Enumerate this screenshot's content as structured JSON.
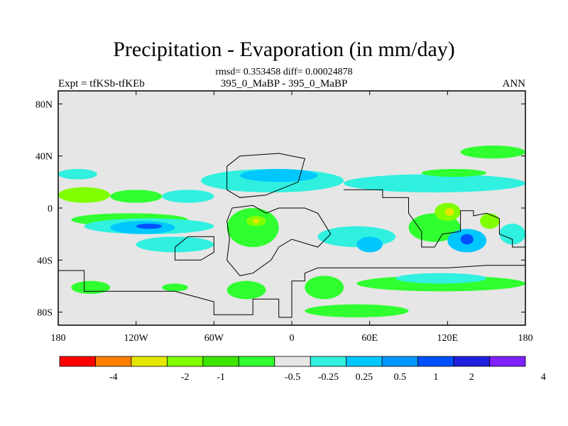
{
  "chart_data": {
    "type": "heatmap",
    "title": "Precipitation - Evaporation (in mm/day)",
    "stats": "rmsd= 0.353458 diff= 0.00024878",
    "subtitle": "395_0_MaBP - 395_0_MaBP",
    "expt": "Expt = tfKSb-tfKEb",
    "season": "ANN",
    "x_ticks": [
      {
        "value": -180,
        "label": "180"
      },
      {
        "value": -120,
        "label": "120W"
      },
      {
        "value": -60,
        "label": "60W"
      },
      {
        "value": 0,
        "label": "0"
      },
      {
        "value": 60,
        "label": "60E"
      },
      {
        "value": 120,
        "label": "120E"
      },
      {
        "value": 180,
        "label": "180"
      }
    ],
    "y_ticks": [
      {
        "value": 80,
        "label": "80N"
      },
      {
        "value": 40,
        "label": "40N"
      },
      {
        "value": 0,
        "label": "0"
      },
      {
        "value": -40,
        "label": "40S"
      },
      {
        "value": -80,
        "label": "80S"
      }
    ],
    "xlim": [
      -180,
      180
    ],
    "ylim": [
      -90,
      90
    ],
    "colorbar": {
      "colors": [
        "#ff0000",
        "#ff7f00",
        "#e6e600",
        "#80ff00",
        "#3ce600",
        "#30ff30",
        "#e6e6e6",
        "#30f0e0",
        "#00c8ff",
        "#0098ff",
        "#0050ff",
        "#2020e0",
        "#8020ff"
      ],
      "levels": [
        "-4",
        "-2",
        "-1",
        "-0.5",
        "-0.25",
        "0.25",
        "0.5",
        "1",
        "2",
        "4"
      ],
      "level_positions": [
        1.5,
        3.5,
        4.5,
        6.5,
        7.5,
        8.5,
        9.5,
        10.5,
        11.5,
        13.5
      ]
    },
    "regions": [
      {
        "level": "lightgreen",
        "color": "#80ff00",
        "lon": [
          -180,
          -140
        ],
        "lat": [
          4,
          16
        ]
      },
      {
        "level": "green",
        "color": "#30ff30",
        "lon": [
          -140,
          -100
        ],
        "lat": [
          4,
          14
        ]
      },
      {
        "level": "cyan",
        "color": "#30f0e0",
        "lon": [
          -100,
          -60
        ],
        "lat": [
          4,
          14
        ]
      },
      {
        "level": "cyan",
        "color": "#30f0e0",
        "lon": [
          -70,
          40
        ],
        "lat": [
          12,
          30
        ]
      },
      {
        "level": "lightblue",
        "color": "#00c8ff",
        "lon": [
          -40,
          20
        ],
        "lat": [
          20,
          30
        ]
      },
      {
        "level": "cyan",
        "color": "#30f0e0",
        "lon": [
          -180,
          -150
        ],
        "lat": [
          22,
          30
        ]
      },
      {
        "level": "cyan",
        "color": "#30f0e0",
        "lon": [
          40,
          180
        ],
        "lat": [
          12,
          26
        ]
      },
      {
        "level": "green",
        "color": "#30ff30",
        "lon": [
          100,
          150
        ],
        "lat": [
          24,
          30
        ]
      },
      {
        "level": "green",
        "color": "#30ff30",
        "lon": [
          130,
          180
        ],
        "lat": [
          38,
          48
        ]
      },
      {
        "level": "green",
        "color": "#30ff30",
        "lon": [
          -170,
          -80
        ],
        "lat": [
          -14,
          -4
        ]
      },
      {
        "level": "cyan",
        "color": "#30f0e0",
        "lon": [
          -160,
          -60
        ],
        "lat": [
          -20,
          -8
        ]
      },
      {
        "level": "lightblue",
        "color": "#00c8ff",
        "lon": [
          -140,
          -90
        ],
        "lat": [
          -20,
          -10
        ]
      },
      {
        "level": "blue",
        "color": "#0050ff",
        "lon": [
          -120,
          -100
        ],
        "lat": [
          -16,
          -12
        ]
      },
      {
        "level": "cyan",
        "color": "#30f0e0",
        "lon": [
          -120,
          -60
        ],
        "lat": [
          -34,
          -22
        ]
      },
      {
        "level": "green",
        "color": "#30ff30",
        "lon": [
          -50,
          -10
        ],
        "lat": [
          -30,
          0
        ]
      },
      {
        "level": "lightgreen",
        "color": "#80ff00",
        "lon": [
          -35,
          -20
        ],
        "lat": [
          -14,
          -6
        ]
      },
      {
        "level": "yellow",
        "color": "#e6e600",
        "lon": [
          -30,
          -25
        ],
        "lat": [
          -12,
          -8
        ]
      },
      {
        "level": "cyan",
        "color": "#30f0e0",
        "lon": [
          20,
          80
        ],
        "lat": [
          -30,
          -14
        ]
      },
      {
        "level": "lightblue",
        "color": "#00c8ff",
        "lon": [
          50,
          70
        ],
        "lat": [
          -34,
          -22
        ]
      },
      {
        "level": "green",
        "color": "#30ff30",
        "lon": [
          90,
          130
        ],
        "lat": [
          -26,
          -4
        ]
      },
      {
        "level": "lightgreen",
        "color": "#80ff00",
        "lon": [
          110,
          130
        ],
        "lat": [
          -10,
          4
        ]
      },
      {
        "level": "yellow",
        "color": "#e6e600",
        "lon": [
          118,
          125
        ],
        "lat": [
          -6,
          0
        ]
      },
      {
        "level": "lightblue",
        "color": "#00c8ff",
        "lon": [
          120,
          150
        ],
        "lat": [
          -34,
          -16
        ]
      },
      {
        "level": "blue",
        "color": "#0050ff",
        "lon": [
          130,
          140
        ],
        "lat": [
          -28,
          -20
        ]
      },
      {
        "level": "lightgreen",
        "color": "#80ff00",
        "lon": [
          145,
          160
        ],
        "lat": [
          -16,
          -4
        ]
      },
      {
        "level": "cyan",
        "color": "#30f0e0",
        "lon": [
          160,
          180
        ],
        "lat": [
          -28,
          -12
        ]
      },
      {
        "level": "green",
        "color": "#30ff30",
        "lon": [
          -170,
          -140
        ],
        "lat": [
          -66,
          -56
        ]
      },
      {
        "level": "green",
        "color": "#30ff30",
        "lon": [
          -100,
          -80
        ],
        "lat": [
          -64,
          -58
        ]
      },
      {
        "level": "green",
        "color": "#30ff30",
        "lon": [
          -50,
          -20
        ],
        "lat": [
          -70,
          -56
        ]
      },
      {
        "level": "green",
        "color": "#30ff30",
        "lon": [
          10,
          40
        ],
        "lat": [
          -70,
          -52
        ]
      },
      {
        "level": "green",
        "color": "#30ff30",
        "lon": [
          50,
          180
        ],
        "lat": [
          -64,
          -52
        ]
      },
      {
        "level": "cyan",
        "color": "#30f0e0",
        "lon": [
          80,
          150
        ],
        "lat": [
          -58,
          -50
        ]
      },
      {
        "level": "green",
        "color": "#30ff30",
        "lon": [
          10,
          90
        ],
        "lat": [
          -84,
          -74
        ]
      }
    ],
    "land_outlines": [
      [
        [
          -180,
          -48
        ],
        [
          -160,
          -48
        ],
        [
          -160,
          -58
        ],
        [
          -160,
          -64
        ],
        [
          -90,
          -64
        ],
        [
          -60,
          -72
        ],
        [
          -60,
          -82
        ],
        [
          -30,
          -82
        ],
        [
          -30,
          -70
        ],
        [
          -10,
          -70
        ],
        [
          -10,
          -84
        ],
        [
          0,
          -84
        ],
        [
          0,
          -56
        ],
        [
          10,
          -56
        ],
        [
          10,
          -50
        ],
        [
          20,
          -46
        ],
        [
          60,
          -46
        ],
        [
          120,
          -46
        ],
        [
          150,
          -44
        ],
        [
          180,
          -44
        ]
      ],
      [
        [
          -50,
          32
        ],
        [
          -40,
          40
        ],
        [
          -10,
          42
        ],
        [
          0,
          40
        ],
        [
          10,
          38
        ],
        [
          5,
          20
        ],
        [
          -10,
          14
        ],
        [
          -20,
          10
        ],
        [
          -40,
          8
        ],
        [
          -50,
          14
        ],
        [
          -50,
          32
        ]
      ],
      [
        [
          -46,
          0
        ],
        [
          -30,
          2
        ],
        [
          -20,
          -4
        ],
        [
          -10,
          0
        ],
        [
          10,
          0
        ],
        [
          20,
          -4
        ],
        [
          30,
          -20
        ],
        [
          20,
          -30
        ],
        [
          0,
          -24
        ],
        [
          -10,
          -30
        ],
        [
          -16,
          -40
        ],
        [
          -30,
          -50
        ],
        [
          -40,
          -52
        ],
        [
          -50,
          -40
        ],
        [
          -48,
          -24
        ],
        [
          -50,
          -10
        ],
        [
          -46,
          0
        ]
      ],
      [
        [
          40,
          14
        ],
        [
          70,
          14
        ],
        [
          70,
          8
        ],
        [
          90,
          8
        ],
        [
          90,
          -4
        ],
        [
          100,
          -18
        ],
        [
          100,
          -30
        ],
        [
          110,
          -30
        ],
        [
          116,
          -20
        ],
        [
          130,
          -18
        ],
        [
          130,
          -2
        ],
        [
          140,
          -2
        ],
        [
          140,
          -6
        ],
        [
          150,
          -4
        ],
        [
          160,
          -8
        ],
        [
          160,
          -20
        ],
        [
          170,
          -24
        ],
        [
          170,
          -30
        ],
        [
          180,
          -30
        ]
      ],
      [
        [
          -90,
          -30
        ],
        [
          -90,
          -40
        ],
        [
          -70,
          -40
        ],
        [
          -60,
          -34
        ],
        [
          -60,
          -22
        ],
        [
          -80,
          -22
        ],
        [
          -90,
          -30
        ]
      ]
    ]
  }
}
